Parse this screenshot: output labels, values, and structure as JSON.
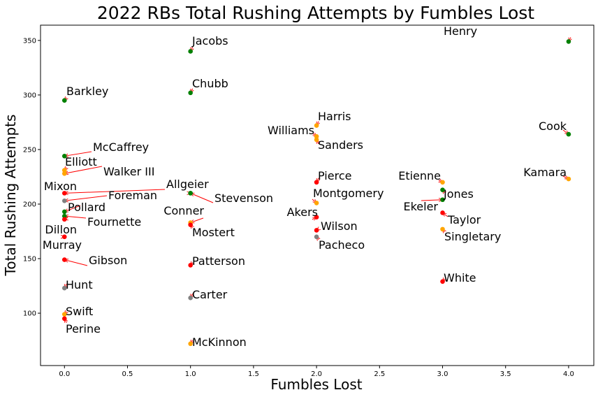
{
  "chart_data": {
    "type": "scatter",
    "title": "2022 RBs Total Rushing Attempts by Fumbles Lost",
    "xlabel": "Fumbles Lost",
    "ylabel": "Total Rushing Attempts",
    "xlim": [
      -0.19,
      4.2
    ],
    "ylim": [
      52,
      364
    ],
    "xticks": [
      0,
      0.5,
      1,
      1.5,
      2,
      2.5,
      3,
      3.5,
      4
    ],
    "xtick_labels": [
      "0.0",
      "0.5",
      "1.0",
      "1.5",
      "2.0",
      "2.5",
      "3.0",
      "3.5",
      "4.0"
    ],
    "yticks": [
      100,
      150,
      200,
      250,
      300,
      350
    ],
    "ytick_labels": [
      "100",
      "150",
      "200",
      "250",
      "300",
      "350"
    ],
    "grid": false,
    "colors": {
      "green": "#008000",
      "orange": "#ffa500",
      "red": "#ff0000",
      "gray": "#808080",
      "arrow": "#ff0000"
    },
    "points": [
      {
        "name": "Henry",
        "x": 4.0,
        "y": 349,
        "color": "green"
      },
      {
        "name": "Jacobs",
        "x": 1,
        "y": 340,
        "color": "green"
      },
      {
        "name": "Chubb",
        "x": 1,
        "y": 302,
        "color": "green"
      },
      {
        "name": "Barkley",
        "x": 0,
        "y": 295,
        "color": "green"
      },
      {
        "name": "Harris",
        "x": 2,
        "y": 272,
        "color": "orange"
      },
      {
        "name": "Williams",
        "x": 2,
        "y": 262,
        "color": "orange"
      },
      {
        "name": "Sanders",
        "x": 2,
        "y": 259,
        "color": "orange"
      },
      {
        "name": "Cook",
        "x": 4,
        "y": 264,
        "color": "green"
      },
      {
        "name": "McCaffrey",
        "x": 0,
        "y": 244,
        "color": "green"
      },
      {
        "name": "Elliott",
        "x": 0,
        "y": 231,
        "color": "orange"
      },
      {
        "name": "Walker III",
        "x": 0,
        "y": 228,
        "color": "orange"
      },
      {
        "name": "Pierce",
        "x": 2,
        "y": 220,
        "color": "red"
      },
      {
        "name": "Etienne",
        "x": 3,
        "y": 220,
        "color": "orange"
      },
      {
        "name": "Kamara",
        "x": 4,
        "y": 223,
        "color": "orange"
      },
      {
        "name": "Mixon",
        "x": 0,
        "y": 210,
        "color": "red"
      },
      {
        "name": "Allgeier",
        "x": 1,
        "y": 210,
        "color": "green"
      },
      {
        "name": "Foreman",
        "x": 0,
        "y": 203,
        "color": "gray"
      },
      {
        "name": "Stevenson",
        "x": 1,
        "y": 210,
        "color": "green"
      },
      {
        "name": "Montgomery",
        "x": 2,
        "y": 201,
        "color": "orange"
      },
      {
        "name": "Jones",
        "x": 3,
        "y": 213,
        "color": "green"
      },
      {
        "name": "Ekeler",
        "x": 3,
        "y": 204,
        "color": "green"
      },
      {
        "name": "Pollard",
        "x": 0,
        "y": 193,
        "color": "green"
      },
      {
        "name": "Conner",
        "x": 1,
        "y": 183,
        "color": "orange"
      },
      {
        "name": "Akers",
        "x": 2,
        "y": 188,
        "color": "red"
      },
      {
        "name": "Fournette",
        "x": 0,
        "y": 189,
        "color": "green"
      },
      {
        "name": "Dillon",
        "x": 0,
        "y": 186,
        "color": "red"
      },
      {
        "name": "Taylor",
        "x": 3,
        "y": 192,
        "color": "red"
      },
      {
        "name": "Wilson",
        "x": 2,
        "y": 176,
        "color": "red"
      },
      {
        "name": "Mostert",
        "x": 1,
        "y": 181,
        "color": "red"
      },
      {
        "name": "Singletary",
        "x": 3,
        "y": 177,
        "color": "orange"
      },
      {
        "name": "Murray",
        "x": 0,
        "y": 170,
        "color": "red"
      },
      {
        "name": "Pacheco",
        "x": 2,
        "y": 170,
        "color": "gray"
      },
      {
        "name": "Gibson",
        "x": 0,
        "y": 149,
        "color": "red"
      },
      {
        "name": "Patterson",
        "x": 1,
        "y": 144,
        "color": "red"
      },
      {
        "name": "White",
        "x": 3,
        "y": 129,
        "color": "red"
      },
      {
        "name": "Hunt",
        "x": 0,
        "y": 123,
        "color": "gray"
      },
      {
        "name": "Carter",
        "x": 1,
        "y": 114,
        "color": "gray"
      },
      {
        "name": "Swift",
        "x": 0,
        "y": 99,
        "color": "orange"
      },
      {
        "name": "Perine",
        "x": 0,
        "y": 95,
        "color": "red"
      },
      {
        "name": "McKinnon",
        "x": 1,
        "y": 72,
        "color": "orange"
      }
    ]
  }
}
